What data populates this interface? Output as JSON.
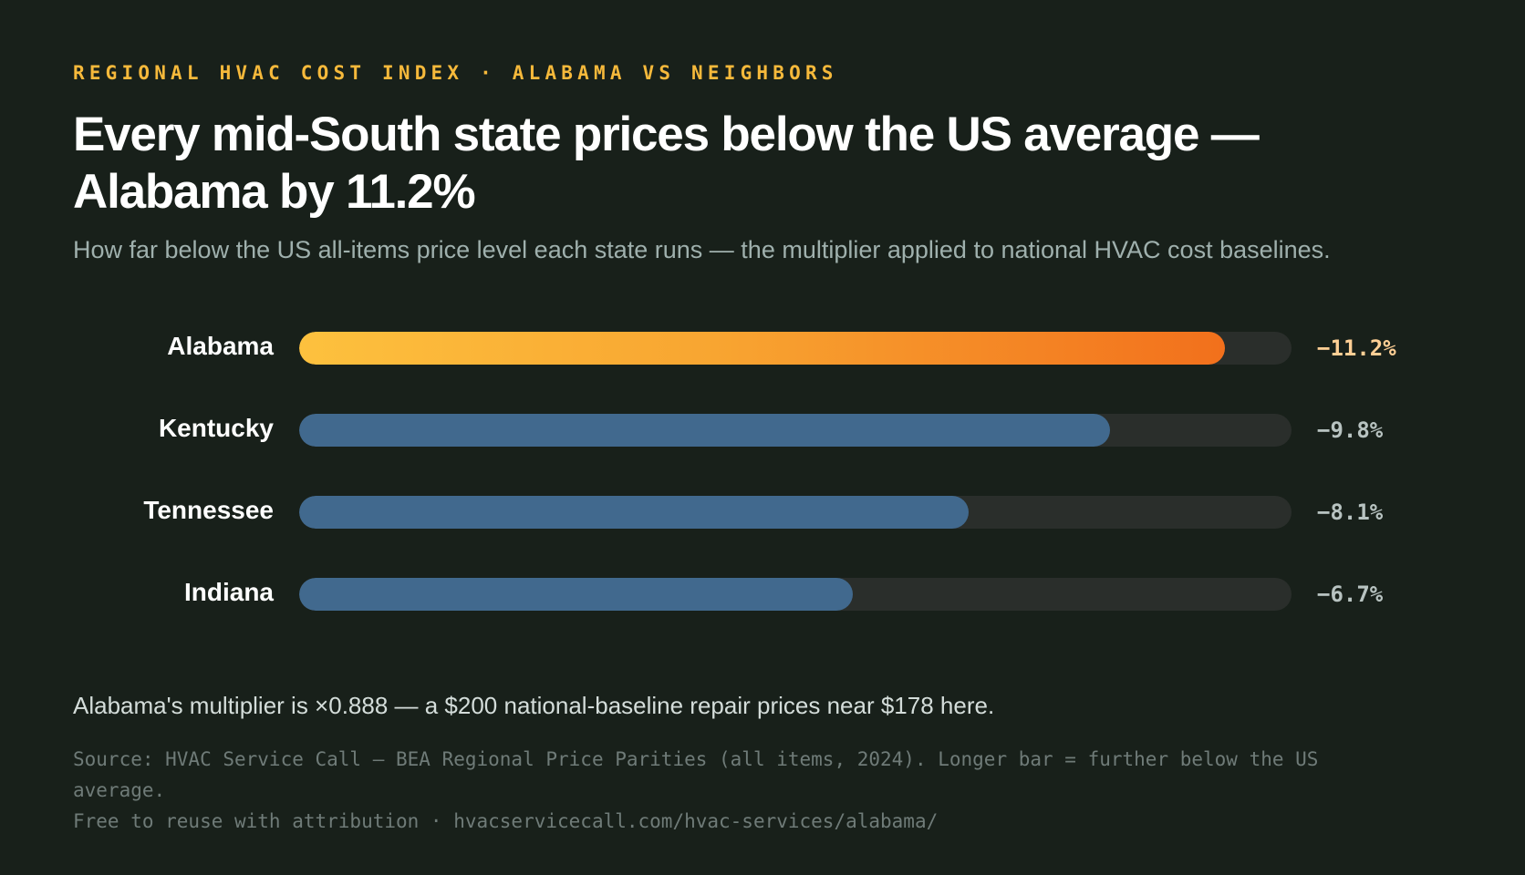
{
  "kicker": "REGIONAL HVAC COST INDEX · ALABAMA VS NEIGHBORS",
  "title": "Every mid-South state prices below the US average — Alabama by 11.2%",
  "subtitle": "How far below the US all-items price level each state runs — the multiplier applied to national HVAC cost baselines.",
  "note": "Alabama's multiplier is ×0.888 — a $200 national-baseline repair prices near $178 here.",
  "source": {
    "line1": "Source: HVAC Service Call — BEA Regional Price Parities (all items, 2024). Longer bar = further below the US average.",
    "line2": "Free to reuse with attribution · hvacservicecall.com/hvac-services/alabama/"
  },
  "colors": {
    "background": "#18201a",
    "kicker": "#f6b93b",
    "highlight_start": "#fdc13e",
    "highlight_end": "#f2701c",
    "bar": "#41698e",
    "track": "#2a2e2b"
  },
  "chart_data": {
    "type": "bar",
    "orientation": "horizontal",
    "categories": [
      "Alabama",
      "Kentucky",
      "Tennessee",
      "Indiana"
    ],
    "values": [
      -11.2,
      -9.8,
      -8.1,
      -6.7
    ],
    "value_labels": [
      "−11.2%",
      "−9.8%",
      "−8.1%",
      "−6.7%"
    ],
    "highlight": "Alabama",
    "xlim": [
      0,
      -12.0
    ],
    "grid": false,
    "legend": "none"
  }
}
